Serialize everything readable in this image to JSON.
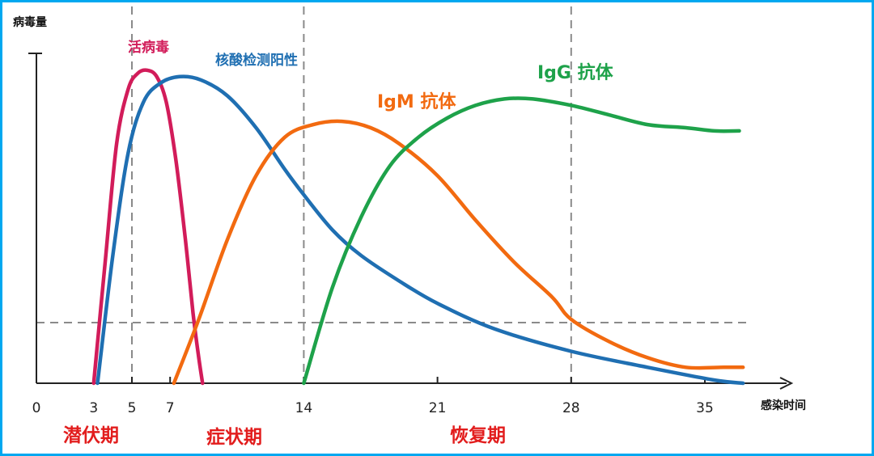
{
  "chart_data": {
    "type": "line",
    "ylabel": "病毒量",
    "xlabel": "感染时间",
    "xlim": [
      0,
      37
    ],
    "ylim": [
      0,
      100
    ],
    "x_ticks": [
      0,
      3,
      5,
      7,
      14,
      21,
      28,
      35
    ],
    "vertical_reference_lines_x": [
      5,
      14,
      28
    ],
    "horizontal_reference_line_y": 19,
    "grid": false,
    "series": [
      {
        "name": "活病毒",
        "color": "#d21c5a",
        "x": [
          3,
          3.6,
          4.2,
          4.8,
          5.3,
          5.8,
          6.3,
          6.8,
          7.3,
          7.8,
          8.2,
          8.5,
          8.7
        ],
        "y": [
          0,
          38,
          75,
          92,
          97,
          98,
          96,
          88,
          70,
          45,
          22,
          8,
          0
        ]
      },
      {
        "name": "核酸检测阳性",
        "color": "#1f6fb2",
        "x": [
          3.2,
          4,
          4.8,
          5.6,
          6.5,
          7.5,
          8.6,
          10,
          11.5,
          13,
          14,
          15.5,
          17,
          19,
          21,
          24,
          28,
          32,
          35.5,
          37
        ],
        "y": [
          0,
          40,
          72,
          88,
          94,
          96,
          95,
          90,
          80,
          67,
          59,
          48,
          40,
          32,
          25,
          17,
          10,
          5,
          1,
          0
        ]
      },
      {
        "name": "IgM 抗体",
        "color": "#f26a10",
        "x": [
          7.2,
          8.5,
          10,
          11.5,
          13,
          14.5,
          16,
          17.5,
          19,
          21,
          23,
          25,
          27,
          28,
          30,
          32,
          34,
          36,
          37
        ],
        "y": [
          0,
          20,
          45,
          65,
          77,
          81,
          82,
          80,
          75,
          65,
          51,
          38,
          27,
          20,
          13,
          8,
          5,
          5,
          5
        ]
      },
      {
        "name": "IgG 抗体",
        "color": "#1ea24a",
        "x": [
          14,
          15.5,
          17,
          18.5,
          20,
          21.5,
          23,
          24.5,
          26,
          28,
          30,
          32,
          34,
          35.5,
          36.8
        ],
        "y": [
          0,
          30,
          52,
          68,
          77,
          83,
          87,
          89,
          89,
          87,
          84,
          81,
          80,
          79,
          79
        ]
      }
    ]
  },
  "text": {
    "y_axis_label": "病毒量",
    "x_axis_label": "感染时间",
    "label_live_virus": "活病毒",
    "label_nucleic": "核酸检测阳性",
    "label_igm": "IgM 抗体",
    "label_igg": "IgG 抗体",
    "phase_incubation": "潜伏期",
    "phase_symptom": "症状期",
    "phase_recovery": "恢复期"
  },
  "colors": {
    "frame": "#00a8f0",
    "phase_text": "#e21d1d"
  }
}
